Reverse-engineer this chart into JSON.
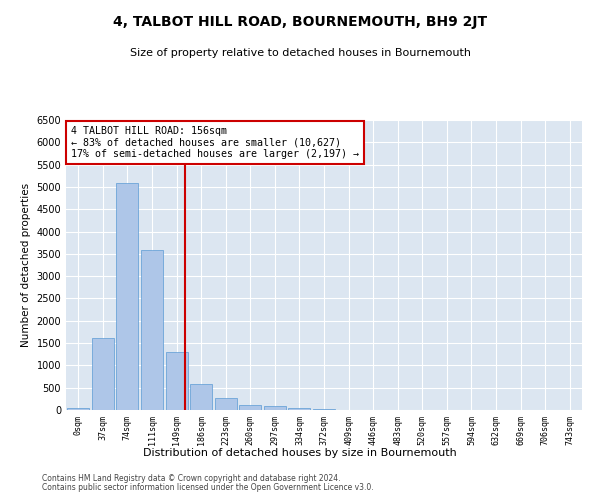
{
  "title": "4, TALBOT HILL ROAD, BOURNEMOUTH, BH9 2JT",
  "subtitle": "Size of property relative to detached houses in Bournemouth",
  "xlabel": "Distribution of detached houses by size in Bournemouth",
  "ylabel": "Number of detached properties",
  "footer_line1": "Contains HM Land Registry data © Crown copyright and database right 2024.",
  "footer_line2": "Contains public sector information licensed under the Open Government Licence v3.0.",
  "bar_labels": [
    "0sqm",
    "37sqm",
    "74sqm",
    "111sqm",
    "149sqm",
    "186sqm",
    "223sqm",
    "260sqm",
    "297sqm",
    "334sqm",
    "372sqm",
    "409sqm",
    "446sqm",
    "483sqm",
    "520sqm",
    "557sqm",
    "594sqm",
    "632sqm",
    "669sqm",
    "706sqm",
    "743sqm"
  ],
  "bar_values": [
    50,
    1620,
    5080,
    3580,
    1300,
    580,
    270,
    120,
    90,
    55,
    30,
    10,
    5,
    2,
    1,
    0,
    0,
    0,
    0,
    0,
    0
  ],
  "bar_color": "#aec6e8",
  "bar_edge_color": "#5b9bd5",
  "bg_color": "#dce6f1",
  "fig_bg_color": "#ffffff",
  "grid_color": "#ffffff",
  "vline_x": 4.33,
  "annotation_text": "4 TALBOT HILL ROAD: 156sqm\n← 83% of detached houses are smaller (10,627)\n17% of semi-detached houses are larger (2,197) →",
  "annotation_box_color": "#ffffff",
  "annotation_box_edge_color": "#cc0000",
  "vline_color": "#cc0000",
  "ylim": [
    0,
    6500
  ],
  "yticks": [
    0,
    500,
    1000,
    1500,
    2000,
    2500,
    3000,
    3500,
    4000,
    4500,
    5000,
    5500,
    6000,
    6500
  ]
}
